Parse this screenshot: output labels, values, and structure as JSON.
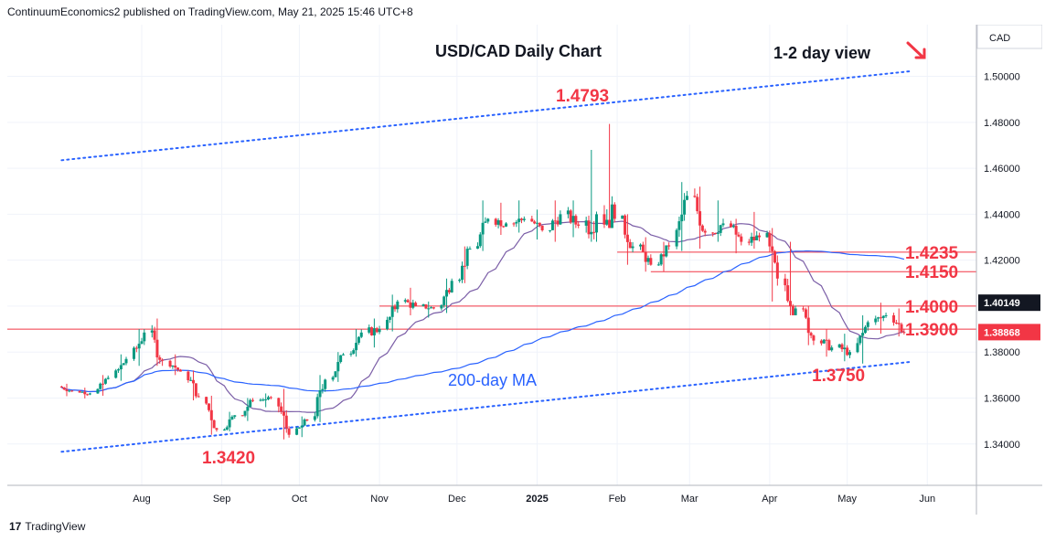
{
  "header": {
    "publisher": "ContinuumEconomics2 published on TradingView.com, May 21, 2025 15:46 UTC+8"
  },
  "footer": {
    "logo_text": "17",
    "brand": "TradingView"
  },
  "chart_data": {
    "type": "candlestick",
    "title": "USD/CAD Daily Chart",
    "view_label": "1-2 day view",
    "currency": "CAD",
    "x_ticks": [
      "Aug",
      "Sep",
      "Oct",
      "Nov",
      "Dec",
      "2025",
      "Feb",
      "Mar",
      "Apr",
      "May",
      "Jun"
    ],
    "y_ticks": [
      "1.34000",
      "1.36000",
      "1.38000",
      "1.40000",
      "1.42000",
      "1.44000",
      "1.46000",
      "1.48000",
      "1.50000"
    ],
    "ylim": [
      1.322,
      1.5225
    ],
    "price_labels": [
      {
        "text": "1.40149",
        "value": 1.40149,
        "color": "#131722"
      },
      {
        "text": "1.38868",
        "value": 1.38868,
        "color": "#f23645"
      }
    ],
    "levels": [
      {
        "label": "1.4235",
        "value": 1.4235
      },
      {
        "label": "1.4150",
        "value": 1.415
      },
      {
        "label": "1.4000",
        "value": 1.4
      },
      {
        "label": "1.3900",
        "value": 1.39
      }
    ],
    "annotations": [
      {
        "text": "1.4793",
        "value": 1.4793
      },
      {
        "text": "1.3420",
        "value": 1.342
      },
      {
        "text": "1.3750",
        "value": 1.375
      }
    ],
    "ma_label": "200-day MA",
    "colors": {
      "up": "#089981",
      "down": "#f23645",
      "line_blue": "#2962ff",
      "label_red": "#f23645",
      "ma200": "#2962ff",
      "ma_short": "#7b5ea7"
    },
    "trend_channel": {
      "upper": [
        {
          "date": "2024-07-01",
          "value": 1.4635
        },
        {
          "date": "2025-05-26",
          "value": 1.5023
        }
      ],
      "lower": [
        {
          "date": "2024-07-01",
          "value": 1.3366
        },
        {
          "date": "2025-05-26",
          "value": 1.3758
        }
      ]
    },
    "candles": [
      [
        "2024-07-01",
        1.365,
        1.3662,
        1.3608,
        1.363
      ],
      [
        "2024-07-08",
        1.363,
        1.3645,
        1.3598,
        1.362
      ],
      [
        "2024-07-15",
        1.362,
        1.37,
        1.361,
        1.3688
      ],
      [
        "2024-07-22",
        1.3688,
        1.379,
        1.3675,
        1.377
      ],
      [
        "2024-07-29",
        1.377,
        1.39,
        1.374,
        1.3885
      ],
      [
        "2024-08-05",
        1.3885,
        1.3946,
        1.374,
        1.3762
      ],
      [
        "2024-08-12",
        1.3762,
        1.379,
        1.37,
        1.3715
      ],
      [
        "2024-08-19",
        1.3715,
        1.372,
        1.359,
        1.3605
      ],
      [
        "2024-08-26",
        1.3605,
        1.361,
        1.344,
        1.3462
      ],
      [
        "2024-09-02",
        1.3462,
        1.354,
        1.3455,
        1.3525
      ],
      [
        "2024-09-09",
        1.3525,
        1.36,
        1.35,
        1.359
      ],
      [
        "2024-09-16",
        1.359,
        1.362,
        1.356,
        1.36
      ],
      [
        "2024-09-23",
        1.36,
        1.364,
        1.342,
        1.344
      ],
      [
        "2024-09-30",
        1.344,
        1.352,
        1.343,
        1.3505
      ],
      [
        "2024-10-07",
        1.3505,
        1.37,
        1.3495,
        1.368
      ],
      [
        "2024-10-14",
        1.368,
        1.38,
        1.367,
        1.379
      ],
      [
        "2024-10-21",
        1.379,
        1.39,
        1.378,
        1.3885
      ],
      [
        "2024-10-28",
        1.3885,
        1.3946,
        1.382,
        1.39
      ],
      [
        "2024-11-04",
        1.39,
        1.405,
        1.389,
        1.402
      ],
      [
        "2024-11-11",
        1.402,
        1.408,
        1.396,
        1.4
      ],
      [
        "2024-11-18",
        1.4,
        1.402,
        1.395,
        1.399
      ],
      [
        "2024-11-25",
        1.399,
        1.412,
        1.397,
        1.411
      ],
      [
        "2024-12-02",
        1.411,
        1.426,
        1.41,
        1.425
      ],
      [
        "2024-12-09",
        1.425,
        1.446,
        1.424,
        1.438
      ],
      [
        "2024-12-16",
        1.438,
        1.445,
        1.431,
        1.436
      ],
      [
        "2024-12-23",
        1.436,
        1.446,
        1.432,
        1.438
      ],
      [
        "2024-12-30",
        1.438,
        1.442,
        1.429,
        1.433
      ],
      [
        "2025-01-06",
        1.433,
        1.446,
        1.428,
        1.44
      ],
      [
        "2025-01-13",
        1.44,
        1.446,
        1.43,
        1.435
      ],
      [
        "2025-01-20",
        1.435,
        1.468,
        1.428,
        1.44
      ],
      [
        "2025-01-27",
        1.44,
        1.4793,
        1.434,
        1.438
      ],
      [
        "2025-02-03",
        1.438,
        1.44,
        1.418,
        1.426
      ],
      [
        "2025-02-10",
        1.426,
        1.43,
        1.415,
        1.418
      ],
      [
        "2025-02-17",
        1.418,
        1.428,
        1.415,
        1.426
      ],
      [
        "2025-02-24",
        1.426,
        1.454,
        1.424,
        1.448
      ],
      [
        "2025-03-03",
        1.448,
        1.452,
        1.425,
        1.432
      ],
      [
        "2025-03-10",
        1.432,
        1.446,
        1.428,
        1.436
      ],
      [
        "2025-03-17",
        1.436,
        1.438,
        1.423,
        1.428
      ],
      [
        "2025-03-24",
        1.428,
        1.441,
        1.425,
        1.43
      ],
      [
        "2025-03-31",
        1.43,
        1.434,
        1.402,
        1.412
      ],
      [
        "2025-04-07",
        1.412,
        1.428,
        1.396,
        1.399
      ],
      [
        "2025-04-14",
        1.399,
        1.4,
        1.383,
        1.385
      ],
      [
        "2025-04-21",
        1.385,
        1.39,
        1.378,
        1.382
      ],
      [
        "2025-04-28",
        1.382,
        1.388,
        1.376,
        1.38
      ],
      [
        "2025-05-05",
        1.38,
        1.396,
        1.375,
        1.393
      ],
      [
        "2025-05-12",
        1.393,
        1.4015,
        1.388,
        1.396
      ],
      [
        "2025-05-19",
        1.396,
        1.399,
        1.3868,
        1.3887
      ]
    ]
  }
}
